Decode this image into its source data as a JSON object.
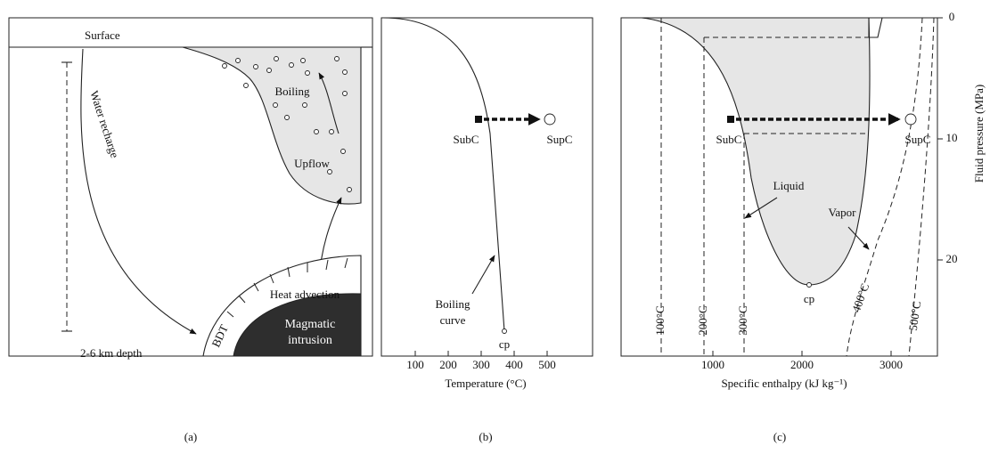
{
  "panel_a": {
    "surface": "Surface",
    "water_recharge": "Water recharge",
    "boiling": "Boiling",
    "upflow": "Upflow",
    "heat_advection": "Heat advection",
    "depth": "2-6 km depth",
    "bdt": "BDT",
    "magmatic_1": "Magmatic",
    "magmatic_2": "intrusion",
    "label": "(a)"
  },
  "panel_b": {
    "subc": "SubC",
    "supc": "SupC",
    "boiling_1": "Boiling",
    "boiling_2": "curve",
    "cp": "cp",
    "xlabel": "Temperature (°C)",
    "xticks": [
      100,
      200,
      300,
      400,
      500
    ],
    "label": "(b)"
  },
  "panel_c": {
    "subc": "SubC",
    "supc": "SupC",
    "liquid": "Liquid",
    "vapor": "Vapor",
    "cp": "cp",
    "isotherms": [
      "100°C",
      "200°C",
      "300°C",
      "400°C",
      "500°C"
    ],
    "xlabel": "Specific enthalpy (kJ kg⁻¹)",
    "ylabel": "Fluid pressure (MPa)",
    "xticks": [
      1000,
      2000,
      3000
    ],
    "yticks": [
      0,
      10,
      20
    ],
    "label": "(c)"
  }
}
